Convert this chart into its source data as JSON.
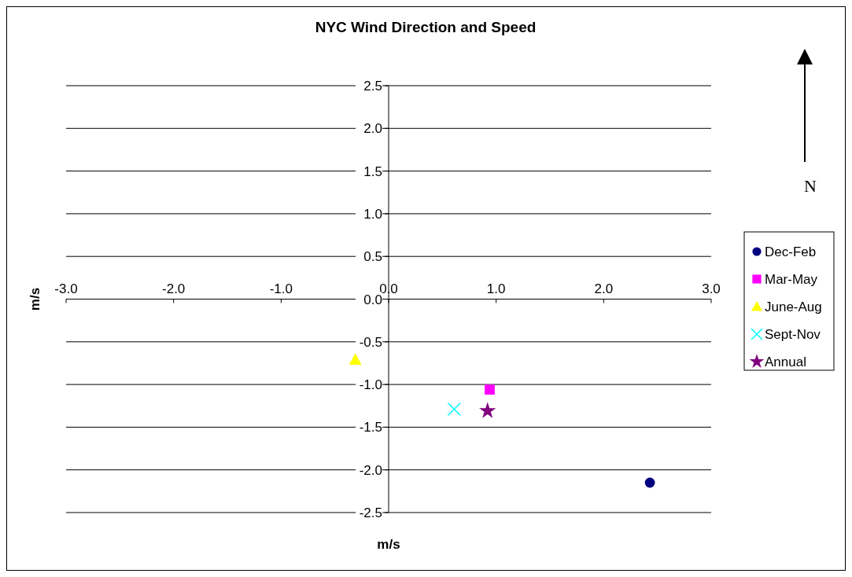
{
  "chart_data": {
    "type": "scatter",
    "title": "NYC Wind Direction and Speed",
    "xlabel": "m/s",
    "ylabel": "m/s",
    "xlim": [
      -3,
      3
    ],
    "ylim": [
      -2.5,
      2.5
    ],
    "xticks": [
      {
        "value": -3,
        "label": "-3.0"
      },
      {
        "value": -2,
        "label": "-2.0"
      },
      {
        "value": -1,
        "label": "-1.0"
      },
      {
        "value": 0,
        "label": "0.0"
      },
      {
        "value": 1,
        "label": "1.0"
      },
      {
        "value": 2,
        "label": "2.0"
      },
      {
        "value": 3,
        "label": "3.0"
      }
    ],
    "yticks": [
      {
        "value": -2.5,
        "label": "-2.5"
      },
      {
        "value": -2,
        "label": "-2.0"
      },
      {
        "value": -1.5,
        "label": "-1.5"
      },
      {
        "value": -1,
        "label": "-1.0"
      },
      {
        "value": -0.5,
        "label": "-0.5"
      },
      {
        "value": 0,
        "label": "0.0"
      },
      {
        "value": 0.5,
        "label": "0.5"
      },
      {
        "value": 1,
        "label": "1.0"
      },
      {
        "value": 1.5,
        "label": "1.5"
      },
      {
        "value": 2,
        "label": "2.0"
      },
      {
        "value": 2.5,
        "label": "2.5"
      }
    ],
    "grid": "y",
    "legend": "right",
    "annotations": [
      "N"
    ],
    "series": [
      {
        "name": "Dec-Feb",
        "color": "#000080",
        "marker": "circle",
        "x": [
          2.43
        ],
        "values": [
          -2.15
        ]
      },
      {
        "name": "Mar-May",
        "color": "#ff00ff",
        "marker": "square",
        "x": [
          0.94
        ],
        "values": [
          -1.06
        ]
      },
      {
        "name": "June-Aug",
        "color": "#ffff00",
        "marker": "triangle",
        "x": [
          -0.31
        ],
        "values": [
          -0.71
        ]
      },
      {
        "name": "Sept-Nov",
        "color": "#00ffff",
        "marker": "cross",
        "x": [
          0.61
        ],
        "values": [
          -1.29
        ]
      },
      {
        "name": "Annual",
        "color": "#800080",
        "marker": "star",
        "x": [
          0.92
        ],
        "values": [
          -1.31
        ]
      }
    ]
  }
}
